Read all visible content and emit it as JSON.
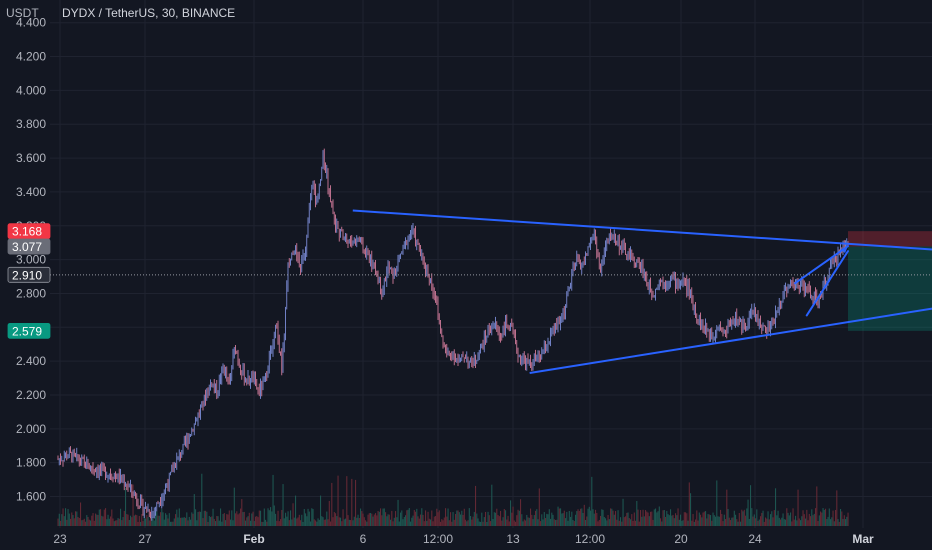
{
  "chart_data": {
    "type": "candlestick",
    "title": "DYDX / TetherUS, 30, BINANCE",
    "currency": "USDT",
    "y_ticks": [
      "4.400",
      "4.200",
      "4.000",
      "3.800",
      "3.600",
      "3.400",
      "3.200",
      "3.000",
      "2.800",
      "2.600",
      "2.400",
      "2.200",
      "2.000",
      "1.800",
      "1.600"
    ],
    "y_tick_values": [
      4.4,
      4.2,
      4.0,
      3.8,
      3.6,
      3.4,
      3.2,
      3.0,
      2.8,
      2.6,
      2.4,
      2.2,
      2.0,
      1.8,
      1.6
    ],
    "ylim": [
      1.42,
      4.47
    ],
    "x_ticks": [
      {
        "label": "23",
        "bold": false
      },
      {
        "label": "27",
        "bold": false
      },
      {
        "label": "Feb",
        "bold": true
      },
      {
        "label": "6",
        "bold": false
      },
      {
        "label": "12:00",
        "bold": false
      },
      {
        "label": "13",
        "bold": false
      },
      {
        "label": "12:00",
        "bold": false
      },
      {
        "label": "20",
        "bold": false
      },
      {
        "label": "24",
        "bold": false
      },
      {
        "label": "Mar",
        "bold": true
      }
    ],
    "price_tags": [
      {
        "label": "3.168",
        "value": 3.168,
        "color": "#f23645"
      },
      {
        "label": "3.077",
        "value": 3.077,
        "color": "#6a6d78"
      },
      {
        "label": "2.910",
        "value": 2.91,
        "color": "#2a2e39"
      },
      {
        "label": "2.579",
        "value": 2.579,
        "color": "#089981"
      }
    ],
    "price_path": [
      [
        0,
        1.82
      ],
      [
        2,
        1.85
      ],
      [
        5,
        1.78
      ],
      [
        10,
        1.72
      ],
      [
        12,
        1.66
      ],
      [
        14,
        1.55
      ],
      [
        16,
        1.5
      ],
      [
        18,
        1.63
      ],
      [
        20,
        1.8
      ],
      [
        22,
        1.94
      ],
      [
        24,
        2.1
      ],
      [
        26,
        2.28
      ],
      [
        27,
        2.22
      ],
      [
        28,
        2.37
      ],
      [
        29,
        2.25
      ],
      [
        30,
        2.49
      ],
      [
        31,
        2.35
      ],
      [
        32,
        2.28
      ],
      [
        33,
        2.3
      ],
      [
        34,
        2.22
      ],
      [
        35,
        2.27
      ],
      [
        36,
        2.44
      ],
      [
        37,
        2.61
      ],
      [
        38,
        2.35
      ],
      [
        39,
        2.95
      ],
      [
        40,
        3.08
      ],
      [
        41,
        2.95
      ],
      [
        42,
        3.05
      ],
      [
        43,
        3.46
      ],
      [
        44,
        3.32
      ],
      [
        45,
        3.63
      ],
      [
        46,
        3.4
      ],
      [
        47,
        3.22
      ],
      [
        48,
        3.15
      ],
      [
        49,
        3.12
      ],
      [
        50,
        3.1
      ],
      [
        51,
        3.13
      ],
      [
        52,
        3.05
      ],
      [
        53,
        3.0
      ],
      [
        54,
        2.92
      ],
      [
        55,
        2.82
      ],
      [
        56,
        2.95
      ],
      [
        57,
        2.9
      ],
      [
        58,
        3.02
      ],
      [
        59,
        3.1
      ],
      [
        60,
        3.18
      ],
      [
        61,
        3.08
      ],
      [
        62,
        2.98
      ],
      [
        63,
        2.9
      ],
      [
        64,
        2.78
      ],
      [
        65,
        2.55
      ],
      [
        66,
        2.43
      ],
      [
        67,
        2.45
      ],
      [
        68,
        2.39
      ],
      [
        69,
        2.44
      ],
      [
        70,
        2.38
      ],
      [
        71,
        2.42
      ],
      [
        72,
        2.5
      ],
      [
        73,
        2.58
      ],
      [
        74,
        2.62
      ],
      [
        75,
        2.55
      ],
      [
        76,
        2.62
      ],
      [
        77,
        2.58
      ],
      [
        78,
        2.44
      ],
      [
        79,
        2.4
      ],
      [
        80,
        2.38
      ],
      [
        81,
        2.41
      ],
      [
        82,
        2.43
      ],
      [
        83,
        2.5
      ],
      [
        84,
        2.58
      ],
      [
        85,
        2.62
      ],
      [
        86,
        2.72
      ],
      [
        87,
        2.88
      ],
      [
        88,
        3.0
      ],
      [
        89,
        2.96
      ],
      [
        90,
        3.08
      ],
      [
        91,
        3.15
      ],
      [
        92,
        2.92
      ],
      [
        93,
        3.1
      ],
      [
        94,
        3.15
      ],
      [
        95,
        3.1
      ],
      [
        96,
        3.05
      ],
      [
        97,
        3.02
      ],
      [
        98,
        2.98
      ],
      [
        99,
        2.96
      ],
      [
        100,
        2.85
      ],
      [
        101,
        2.8
      ],
      [
        102,
        2.88
      ],
      [
        103,
        2.86
      ],
      [
        104,
        2.9
      ],
      [
        105,
        2.85
      ],
      [
        106,
        2.88
      ],
      [
        107,
        2.82
      ],
      [
        108,
        2.7
      ],
      [
        109,
        2.62
      ],
      [
        110,
        2.58
      ],
      [
        111,
        2.55
      ],
      [
        112,
        2.62
      ],
      [
        113,
        2.56
      ],
      [
        114,
        2.63
      ],
      [
        115,
        2.66
      ],
      [
        116,
        2.6
      ],
      [
        117,
        2.64
      ],
      [
        118,
        2.7
      ],
      [
        119,
        2.62
      ],
      [
        120,
        2.58
      ],
      [
        121,
        2.6
      ],
      [
        122,
        2.7
      ],
      [
        123,
        2.8
      ],
      [
        124,
        2.86
      ],
      [
        125,
        2.84
      ],
      [
        126,
        2.87
      ],
      [
        127,
        2.82
      ],
      [
        128,
        2.78
      ],
      [
        129,
        2.75
      ],
      [
        130,
        2.85
      ],
      [
        131,
        2.95
      ],
      [
        132,
        3.02
      ],
      [
        133,
        3.07
      ],
      [
        134,
        3.1
      ]
    ],
    "drawings": {
      "resistance_line": [
        [
          50,
          3.29
        ],
        [
          150,
          3.06
        ]
      ],
      "support_line": [
        [
          80,
          2.33
        ],
        [
          150,
          2.71
        ]
      ],
      "wedge_upper": [
        [
          125,
          2.86
        ],
        [
          134,
          3.08
        ]
      ],
      "wedge_lower": [
        [
          127,
          2.67
        ],
        [
          134,
          3.05
        ]
      ],
      "short_position": {
        "x_start": 134,
        "x_end": 150,
        "stop": 3.168,
        "entry": 3.077,
        "target": 2.579
      }
    },
    "current_price": 2.91,
    "grid": true,
    "volume": true
  }
}
